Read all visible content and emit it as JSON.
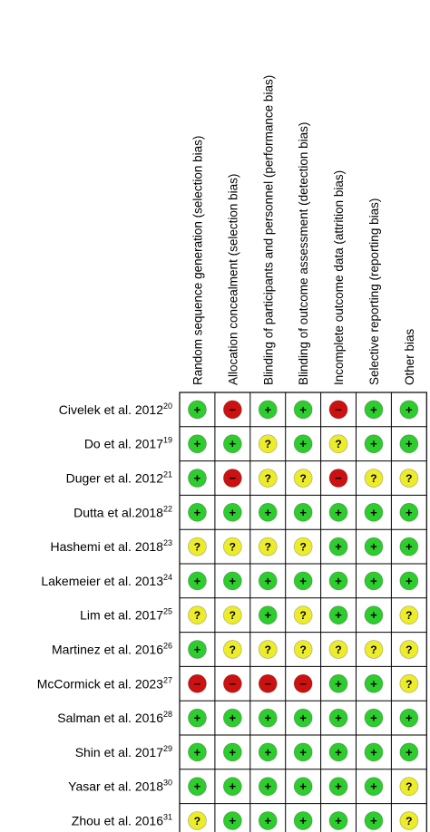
{
  "chart_data": {
    "type": "table",
    "title": "",
    "domains": [
      "Random sequence generation (selection bias)",
      "Allocation concealment (selection bias)",
      "Blinding of participants and personnel (performance bias)",
      "Blinding of outcome assessment (detection bias)",
      "Incomplete outcome data (attrition bias)",
      "Selective reporting (reporting bias)",
      "Other bias"
    ],
    "studies": [
      {
        "name": "Civelek et al. 2012",
        "ref": "20",
        "ratings": [
          "low",
          "high",
          "low",
          "low",
          "high",
          "low",
          "low"
        ]
      },
      {
        "name": "Do et al. 2017",
        "ref": "19",
        "ratings": [
          "low",
          "low",
          "unclear",
          "low",
          "unclear",
          "low",
          "low"
        ]
      },
      {
        "name": "Duger et al. 2012",
        "ref": "21",
        "ratings": [
          "low",
          "high",
          "unclear",
          "unclear",
          "high",
          "unclear",
          "unclear"
        ]
      },
      {
        "name": "Dutta et al.2018",
        "ref": "22",
        "ratings": [
          "low",
          "low",
          "low",
          "low",
          "low",
          "low",
          "low"
        ]
      },
      {
        "name": "Hashemi et al. 2018",
        "ref": "23",
        "ratings": [
          "unclear",
          "unclear",
          "unclear",
          "unclear",
          "low",
          "low",
          "low"
        ]
      },
      {
        "name": "Lakemeier et al. 2013",
        "ref": "24",
        "ratings": [
          "low",
          "low",
          "low",
          "low",
          "low",
          "low",
          "low"
        ]
      },
      {
        "name": "Lim et al. 2017",
        "ref": "25",
        "ratings": [
          "unclear",
          "unclear",
          "low",
          "unclear",
          "low",
          "low",
          "unclear"
        ]
      },
      {
        "name": "Martinez et al. 2016",
        "ref": "26",
        "ratings": [
          "low",
          "unclear",
          "unclear",
          "unclear",
          "unclear",
          "unclear",
          "unclear"
        ]
      },
      {
        "name": "McCormick et al. 2023",
        "ref": "27",
        "ratings": [
          "high",
          "high",
          "high",
          "high",
          "low",
          "low",
          "unclear"
        ]
      },
      {
        "name": "Salman et al. 2016",
        "ref": "28",
        "ratings": [
          "low",
          "low",
          "low",
          "low",
          "low",
          "low",
          "low"
        ]
      },
      {
        "name": "Shin et al. 2017",
        "ref": "29",
        "ratings": [
          "low",
          "low",
          "low",
          "low",
          "low",
          "low",
          "low"
        ]
      },
      {
        "name": "Yasar et al. 2018",
        "ref": "30",
        "ratings": [
          "low",
          "low",
          "low",
          "low",
          "low",
          "low",
          "unclear"
        ]
      },
      {
        "name": "Zhou et al. 2016",
        "ref": "31",
        "ratings": [
          "unclear",
          "low",
          "low",
          "low",
          "low",
          "low",
          "unclear"
        ]
      }
    ],
    "symbols": {
      "low": "+",
      "high": "−",
      "unclear": "?"
    },
    "colors": {
      "low": "#2ecc2e",
      "high": "#cc1111",
      "unclear": "#ecec2c",
      "grid": "#000000"
    }
  }
}
